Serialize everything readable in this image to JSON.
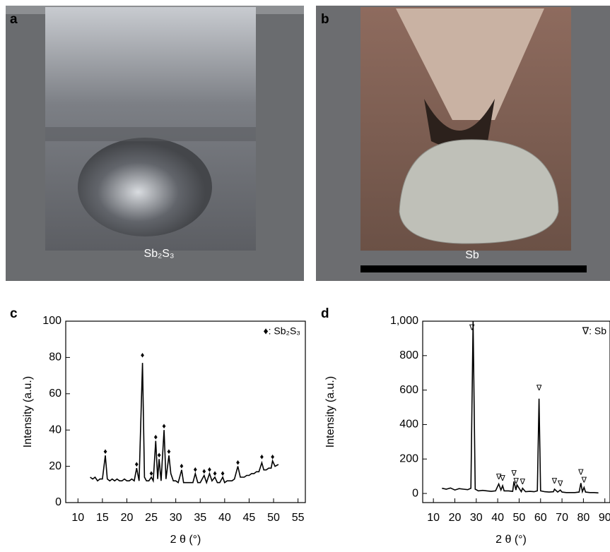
{
  "photos": [
    {
      "panel": "a",
      "label": "Sb₂S₃"
    },
    {
      "panel": "b",
      "label": "Sb"
    }
  ],
  "chart_data": [
    {
      "type": "line",
      "panel": "c",
      "xlabel": "2 θ (°)",
      "ylabel": "Intensity (a.u.)",
      "legend": "♦: Sb₂S₃",
      "xlim": [
        7.5,
        56.5
      ],
      "xticks": [
        10,
        15,
        20,
        25,
        30,
        35,
        40,
        45,
        50,
        55
      ],
      "ylim": [
        0,
        100
      ],
      "yticks": [
        0,
        20,
        40,
        60,
        80,
        100
      ],
      "series": [
        {
          "color": "#000000",
          "x": [
            12.5,
            13,
            13.5,
            14,
            14.5,
            15,
            15.6,
            16,
            16.5,
            17,
            17.5,
            18,
            18.5,
            19,
            19.5,
            20,
            20.5,
            21,
            21.5,
            22,
            22.5,
            23.2,
            23.6,
            24,
            24.5,
            25,
            25.4,
            25.9,
            26.3,
            26.6,
            27,
            27.6,
            28,
            28.6,
            29,
            29.5,
            30,
            30.5,
            31.2,
            31.6,
            32,
            32.5,
            33,
            33.5,
            34,
            34.5,
            35,
            35.8,
            36.3,
            36.9,
            37.4,
            38,
            38.5,
            39,
            39.6,
            40,
            40.5,
            41,
            41.5,
            42,
            42.7,
            43.2,
            43.5,
            44,
            44.5,
            45,
            45.5,
            46,
            46.5,
            47,
            47.6,
            48,
            48.5,
            49,
            49.5,
            49.8,
            50.3,
            51
          ],
          "values": [
            14,
            13,
            14,
            12,
            13,
            13,
            26,
            13,
            12,
            13,
            12,
            13,
            12,
            12,
            13,
            12,
            12,
            13,
            12,
            19,
            12,
            77,
            14,
            12,
            12,
            14,
            12,
            34,
            13,
            24,
            12,
            40,
            13,
            26,
            16,
            12,
            12,
            11,
            18,
            11,
            11,
            11,
            11,
            11,
            16,
            11,
            11,
            15,
            11,
            16,
            12,
            14,
            11,
            11,
            14,
            11,
            12,
            12,
            12,
            13,
            20,
            14,
            14,
            14,
            15,
            15,
            16,
            16,
            17,
            17,
            22,
            18,
            18,
            19,
            19,
            23,
            20,
            21
          ]
        }
      ],
      "markers": {
        "symbol": "♦",
        "x": [
          15.6,
          22,
          23.2,
          25,
          25.9,
          26.6,
          27.6,
          28.6,
          31.2,
          34,
          35.8,
          36.9,
          38,
          39.6,
          42.7,
          47.6,
          49.8
        ],
        "values": [
          28,
          21,
          81,
          16,
          36,
          26,
          42,
          28,
          20,
          18,
          17,
          18,
          16,
          16,
          22,
          25,
          25
        ]
      }
    },
    {
      "type": "line",
      "panel": "d",
      "xlabel": "2 θ (°)",
      "ylabel": "Intensity (a.u.)",
      "legend": "∇: Sb",
      "xlim": [
        5,
        92.4
      ],
      "xticks": [
        10,
        20,
        30,
        40,
        50,
        60,
        70,
        80,
        90
      ],
      "ylim": [
        -53,
        1000
      ],
      "yticks": [
        0,
        200,
        400,
        600,
        800,
        {
          "value": 1000,
          "label": "1,000"
        }
      ],
      "series": [
        {
          "color": "#000000",
          "x": [
            14,
            16,
            18,
            20,
            22,
            24,
            26,
            27.5,
            28.5,
            29.5,
            31,
            33,
            35,
            37,
            39,
            40.5,
            41.5,
            42.3,
            43,
            45,
            47,
            47.6,
            48.5,
            49,
            51,
            51.6,
            53,
            55,
            57,
            58.5,
            59.3,
            60,
            62,
            64,
            66,
            66.5,
            68,
            69.2,
            70,
            72,
            74,
            76,
            78,
            78.8,
            79.5,
            80.3,
            81,
            83,
            85,
            87
          ],
          "values": [
            30,
            25,
            32,
            20,
            28,
            25,
            22,
            30,
            1000,
            25,
            15,
            18,
            15,
            12,
            15,
            55,
            20,
            45,
            15,
            15,
            12,
            70,
            20,
            50,
            10,
            30,
            10,
            12,
            10,
            15,
            550,
            15,
            10,
            8,
            10,
            25,
            8,
            20,
            8,
            5,
            5,
            5,
            8,
            60,
            10,
            35,
            8,
            5,
            5,
            3
          ]
        }
      ],
      "markers": {
        "symbol": "∇",
        "x": [
          28,
          40.5,
          42.3,
          47.6,
          48.6,
          51.6,
          59.3,
          66.5,
          69.2,
          78.8,
          80.3
        ],
        "values": [
          960,
          95,
          85,
          115,
          70,
          65,
          610,
          70,
          55,
          120,
          75
        ]
      }
    }
  ]
}
